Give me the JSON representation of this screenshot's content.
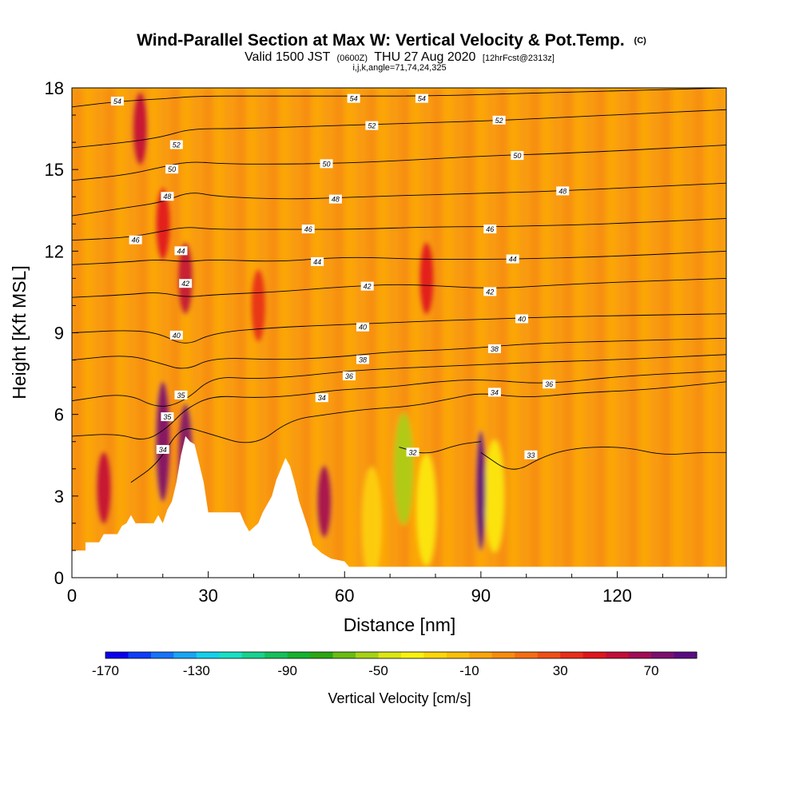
{
  "title": {
    "main": "Wind-Parallel Section at Max W: Vertical Velocity & Pot.Temp.",
    "copyright": "(C)",
    "valid_prefix": "Valid 1500 JST",
    "valid_utc": "(0600Z)",
    "valid_date": "THU 27 Aug 2020",
    "forecast": "[12hrFcst@2313z]",
    "indices": "i,j,k,angle=71,74,24,325"
  },
  "chart_data": {
    "type": "heatmap",
    "xlabel": "Distance [nm]",
    "ylabel": "Height [Kft MSL]",
    "xlim": [
      0,
      144
    ],
    "ylim": [
      0,
      18
    ],
    "x_ticks": [
      0,
      30,
      60,
      90,
      120
    ],
    "x_tick_labels": [
      "0",
      "30",
      "60",
      "90",
      "120"
    ],
    "y_ticks": [
      0,
      3,
      6,
      9,
      12,
      15,
      18
    ],
    "y_tick_labels": [
      "0",
      "3",
      "6",
      "9",
      "12",
      "15",
      "18"
    ],
    "colorbar": {
      "title": "Vertical Velocity [cm/s]",
      "tick_values": [
        -170,
        -130,
        -90,
        -50,
        -10,
        30,
        70
      ],
      "tick_labels": [
        "-170",
        "-130",
        "-90",
        "-50",
        "-10",
        "30",
        "70"
      ],
      "range": [
        -170,
        90
      ],
      "colors": [
        "#0a00ef",
        "#0f3dfa",
        "#1673fb",
        "#19a5f5",
        "#14d0ec",
        "#15e1c4",
        "#17d28f",
        "#15c05c",
        "#14b230",
        "#2aa714",
        "#69bd14",
        "#a5d316",
        "#dbe612",
        "#fbf10e",
        "#fed609",
        "#fcc007",
        "#fba508",
        "#f88c0e",
        "#f46e13",
        "#ef5016",
        "#e82e18",
        "#e1141c",
        "#c30f38",
        "#a20d54",
        "#7d0f6e",
        "#5a0c83"
      ]
    },
    "field_note": "Vertical velocity (color fill) with potential temperature contours",
    "updrafts": [
      {
        "x": 7,
        "z": 3.3,
        "w": 55
      },
      {
        "x": 20,
        "z": 5.0,
        "w": 70
      },
      {
        "x": 25,
        "z": 4.2,
        "w": 75
      },
      {
        "x": 55.5,
        "z": 2.8,
        "w": 60
      },
      {
        "x": 90,
        "z": 3.2,
        "w": 90
      },
      {
        "x": 25,
        "z": 11.0,
        "w": 55
      },
      {
        "x": 15,
        "z": 16.5,
        "w": 55
      },
      {
        "x": 20,
        "z": 13.0,
        "w": 45
      },
      {
        "x": 78,
        "z": 11.0,
        "w": 40
      },
      {
        "x": 41,
        "z": 10.0,
        "w": 35
      }
    ],
    "downdrafts": [
      {
        "x": 73,
        "z": 4.0,
        "w": -55
      },
      {
        "x": 78,
        "z": 2.5,
        "w": -40
      },
      {
        "x": 93,
        "z": 3.0,
        "w": -35
      },
      {
        "x": 66,
        "z": 2.0,
        "w": -25
      }
    ],
    "terrain": [
      [
        0,
        1.0
      ],
      [
        3,
        1.0
      ],
      [
        3,
        1.3
      ],
      [
        6,
        1.3
      ],
      [
        7,
        1.6
      ],
      [
        10,
        1.6
      ],
      [
        11,
        1.9
      ],
      [
        12,
        2.0
      ],
      [
        13,
        2.3
      ],
      [
        14,
        2.0
      ],
      [
        18,
        2.0
      ],
      [
        19,
        2.3
      ],
      [
        20,
        2.0
      ],
      [
        21,
        2.5
      ],
      [
        22,
        2.8
      ],
      [
        23,
        3.5
      ],
      [
        24,
        4.5
      ],
      [
        25,
        5.2
      ],
      [
        26,
        5.0
      ],
      [
        27,
        4.9
      ],
      [
        28,
        4.2
      ],
      [
        29,
        3.5
      ],
      [
        30,
        2.4
      ],
      [
        34,
        2.4
      ],
      [
        37,
        2.4
      ],
      [
        38,
        2.0
      ],
      [
        39,
        1.7
      ],
      [
        41,
        2.0
      ],
      [
        42,
        2.4
      ],
      [
        44,
        3.0
      ],
      [
        45,
        3.6
      ],
      [
        46,
        4.0
      ],
      [
        47,
        4.4
      ],
      [
        48,
        4.1
      ],
      [
        49,
        3.5
      ],
      [
        50,
        2.8
      ],
      [
        51,
        2.3
      ],
      [
        52,
        1.8
      ],
      [
        53,
        1.2
      ],
      [
        55,
        0.9
      ],
      [
        57,
        0.7
      ],
      [
        60,
        0.6
      ],
      [
        61,
        0.4
      ],
      [
        144,
        0.4
      ]
    ],
    "theta_contours": [
      {
        "label": "32",
        "points": [
          [
            72,
            4.8
          ],
          [
            78,
            4.5
          ],
          [
            85,
            4.9
          ],
          [
            90,
            5.0
          ]
        ]
      },
      {
        "label": "33",
        "points": [
          [
            90,
            4.6
          ],
          [
            97,
            3.8
          ],
          [
            104,
            4.5
          ],
          [
            112,
            4.8
          ],
          [
            122,
            4.8
          ],
          [
            130,
            4.5
          ],
          [
            138,
            4.6
          ],
          [
            144,
            4.6
          ]
        ]
      },
      {
        "label": "34",
        "points": [
          [
            13,
            3.5
          ],
          [
            19,
            4.2
          ],
          [
            24,
            5.6
          ],
          [
            30,
            5.3
          ],
          [
            40,
            4.8
          ],
          [
            48,
            5.8
          ],
          [
            56,
            6.0
          ],
          [
            65,
            6.2
          ],
          [
            75,
            6.3
          ],
          [
            84,
            6.6
          ],
          [
            90,
            6.8
          ],
          [
            100,
            6.6
          ],
          [
            112,
            6.8
          ],
          [
            126,
            6.9
          ],
          [
            144,
            7.2
          ]
        ]
      },
      {
        "label": "35",
        "points": [
          [
            0,
            5.2
          ],
          [
            10,
            5.3
          ],
          [
            16,
            5.0
          ],
          [
            21,
            5.5
          ],
          [
            25,
            6.2
          ],
          [
            31,
            6.7
          ],
          [
            40,
            6.6
          ],
          [
            50,
            6.7
          ],
          [
            58,
            6.9
          ],
          [
            70,
            7.0
          ],
          [
            80,
            7.2
          ],
          [
            90,
            7.3
          ],
          [
            104,
            7.1
          ],
          [
            120,
            7.4
          ],
          [
            144,
            7.6
          ]
        ]
      },
      {
        "label": "36",
        "points": [
          [
            0,
            6.5
          ],
          [
            12,
            6.8
          ],
          [
            19,
            6.2
          ],
          [
            25,
            6.5
          ],
          [
            31,
            7.4
          ],
          [
            40,
            7.3
          ],
          [
            50,
            7.4
          ],
          [
            61,
            7.6
          ],
          [
            72,
            7.7
          ],
          [
            86,
            7.8
          ],
          [
            100,
            7.9
          ],
          [
            118,
            8.0
          ],
          [
            144,
            8.2
          ]
        ]
      },
      {
        "label": "38",
        "points": [
          [
            0,
            8.0
          ],
          [
            12,
            8.2
          ],
          [
            19,
            7.9
          ],
          [
            25,
            7.6
          ],
          [
            31,
            8.1
          ],
          [
            45,
            8.0
          ],
          [
            58,
            8.1
          ],
          [
            70,
            8.3
          ],
          [
            86,
            8.4
          ],
          [
            100,
            8.6
          ],
          [
            120,
            8.7
          ],
          [
            144,
            8.8
          ]
        ]
      },
      {
        "label": "40",
        "points": [
          [
            0,
            9.0
          ],
          [
            12,
            9.1
          ],
          [
            19,
            9.0
          ],
          [
            25,
            8.5
          ],
          [
            31,
            9.0
          ],
          [
            45,
            9.2
          ],
          [
            60,
            9.3
          ],
          [
            74,
            9.4
          ],
          [
            90,
            9.5
          ],
          [
            110,
            9.6
          ],
          [
            144,
            9.7
          ]
        ]
      },
      {
        "label": "42",
        "points": [
          [
            0,
            10.3
          ],
          [
            12,
            10.4
          ],
          [
            19,
            10.5
          ],
          [
            25,
            10.3
          ],
          [
            31,
            10.4
          ],
          [
            45,
            10.5
          ],
          [
            60,
            10.7
          ],
          [
            74,
            10.8
          ],
          [
            92,
            10.6
          ],
          [
            110,
            10.8
          ],
          [
            144,
            11.0
          ]
        ]
      },
      {
        "label": "44",
        "points": [
          [
            0,
            11.5
          ],
          [
            12,
            11.6
          ],
          [
            19,
            11.7
          ],
          [
            25,
            11.6
          ],
          [
            31,
            11.7
          ],
          [
            45,
            11.6
          ],
          [
            60,
            11.8
          ],
          [
            76,
            11.7
          ],
          [
            96,
            11.7
          ],
          [
            118,
            11.8
          ],
          [
            144,
            12.0
          ]
        ]
      },
      {
        "label": "46",
        "points": [
          [
            0,
            12.4
          ],
          [
            12,
            12.5
          ],
          [
            19,
            12.7
          ],
          [
            25,
            12.9
          ],
          [
            31,
            12.8
          ],
          [
            45,
            12.8
          ],
          [
            62,
            12.8
          ],
          [
            80,
            12.9
          ],
          [
            96,
            12.9
          ],
          [
            118,
            13.0
          ],
          [
            144,
            13.2
          ]
        ]
      },
      {
        "label": "48",
        "points": [
          [
            0,
            13.3
          ],
          [
            12,
            13.6
          ],
          [
            20,
            13.8
          ],
          [
            26,
            14.2
          ],
          [
            32,
            14.0
          ],
          [
            48,
            13.9
          ],
          [
            64,
            14.0
          ],
          [
            84,
            14.1
          ],
          [
            106,
            14.2
          ],
          [
            144,
            14.5
          ]
        ]
      },
      {
        "label": "50",
        "points": [
          [
            0,
            14.6
          ],
          [
            12,
            14.8
          ],
          [
            20,
            15.1
          ],
          [
            26,
            15.3
          ],
          [
            34,
            15.2
          ],
          [
            52,
            15.2
          ],
          [
            70,
            15.3
          ],
          [
            90,
            15.5
          ],
          [
            110,
            15.6
          ],
          [
            144,
            15.9
          ]
        ]
      },
      {
        "label": "52",
        "points": [
          [
            0,
            15.8
          ],
          [
            12,
            16.0
          ],
          [
            20,
            16.2
          ],
          [
            26,
            16.5
          ],
          [
            36,
            16.5
          ],
          [
            56,
            16.6
          ],
          [
            74,
            16.7
          ],
          [
            94,
            16.8
          ],
          [
            118,
            17.0
          ],
          [
            144,
            17.2
          ]
        ]
      },
      {
        "label": "54",
        "points": [
          [
            0,
            17.3
          ],
          [
            10,
            17.5
          ],
          [
            20,
            17.6
          ],
          [
            28,
            17.7
          ],
          [
            40,
            17.7
          ],
          [
            60,
            17.7
          ],
          [
            78,
            17.7
          ],
          [
            100,
            17.8
          ],
          [
            144,
            18.0
          ]
        ]
      }
    ],
    "contour_labels": [
      {
        "text": "54",
        "x": 10,
        "z": 17.5
      },
      {
        "text": "54",
        "x": 62,
        "z": 17.6
      },
      {
        "text": "54",
        "x": 77,
        "z": 17.6
      },
      {
        "text": "52",
        "x": 23,
        "z": 15.9
      },
      {
        "text": "52",
        "x": 66,
        "z": 16.6
      },
      {
        "text": "52",
        "x": 94,
        "z": 16.8
      },
      {
        "text": "50",
        "x": 22,
        "z": 15.0
      },
      {
        "text": "50",
        "x": 56,
        "z": 15.2
      },
      {
        "text": "50",
        "x": 98,
        "z": 15.5
      },
      {
        "text": "48",
        "x": 21,
        "z": 14.0
      },
      {
        "text": "48",
        "x": 58,
        "z": 13.9
      },
      {
        "text": "48",
        "x": 108,
        "z": 14.2
      },
      {
        "text": "46",
        "x": 14,
        "z": 12.4
      },
      {
        "text": "46",
        "x": 52,
        "z": 12.8
      },
      {
        "text": "46",
        "x": 92,
        "z": 12.8
      },
      {
        "text": "44",
        "x": 24,
        "z": 12.0
      },
      {
        "text": "44",
        "x": 54,
        "z": 11.6
      },
      {
        "text": "44",
        "x": 97,
        "z": 11.7
      },
      {
        "text": "42",
        "x": 25,
        "z": 10.8
      },
      {
        "text": "42",
        "x": 65,
        "z": 10.7
      },
      {
        "text": "42",
        "x": 92,
        "z": 10.5
      },
      {
        "text": "40",
        "x": 23,
        "z": 8.9
      },
      {
        "text": "40",
        "x": 64,
        "z": 9.2
      },
      {
        "text": "40",
        "x": 99,
        "z": 9.5
      },
      {
        "text": "38",
        "x": 64,
        "z": 8.0
      },
      {
        "text": "38",
        "x": 93,
        "z": 8.4
      },
      {
        "text": "36",
        "x": 61,
        "z": 7.4
      },
      {
        "text": "36",
        "x": 105,
        "z": 7.1
      },
      {
        "text": "35",
        "x": 24,
        "z": 6.7
      },
      {
        "text": "35",
        "x": 21,
        "z": 5.9
      },
      {
        "text": "34",
        "x": 55,
        "z": 6.6
      },
      {
        "text": "34",
        "x": 93,
        "z": 6.8
      },
      {
        "text": "34",
        "x": 20,
        "z": 4.7
      },
      {
        "text": "32",
        "x": 75,
        "z": 4.6
      },
      {
        "text": "33",
        "x": 101,
        "z": 4.5
      }
    ]
  }
}
